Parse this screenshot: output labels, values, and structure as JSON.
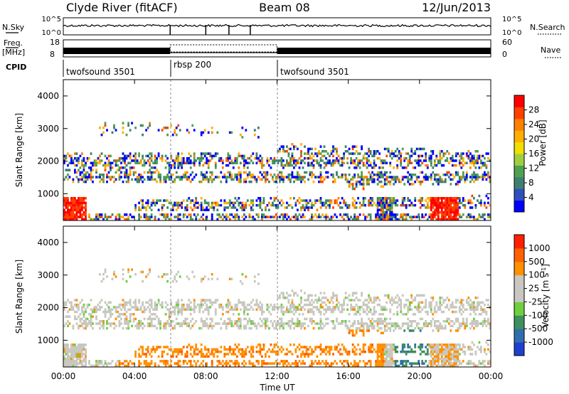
{
  "header": {
    "station": "Clyde River (fitACF)",
    "beam": "Beam 08",
    "date": "12/Jun/2013"
  },
  "status": {
    "nsky_label": "N.Sky",
    "nsky_ticks": [
      "10^5",
      "10^0"
    ],
    "nsearch_label": "N.Search",
    "freq_label": "Freq.",
    "freq_unit": "[MHz]",
    "freq_ticks": [
      "18",
      "8"
    ],
    "nave_ticks": [
      "60",
      "0"
    ],
    "nave_label": "Nave",
    "cpid_label": "CPID",
    "cpid_segments": [
      {
        "name": "twofsound 3501",
        "start_hr": 0,
        "end_hr": 6
      },
      {
        "name": "rbsp 200",
        "start_hr": 6,
        "end_hr": 12
      },
      {
        "name": "twofsound 3501",
        "start_hr": 12,
        "end_hr": 24
      }
    ]
  },
  "axes": {
    "ylabel": "Slant Range [km]",
    "xlabel": "Time UT",
    "yticks": [
      "1000",
      "2000",
      "3000",
      "4000"
    ],
    "xticks": [
      "00:00",
      "04:00",
      "08:00",
      "12:00",
      "16:00",
      "20:00",
      "00:00"
    ]
  },
  "chart_data": [
    {
      "type": "heatmap",
      "panel": "power",
      "x_range_hr": [
        0,
        24
      ],
      "y_range_km": [
        180,
        4500
      ],
      "yticks_km": [
        1000,
        2000,
        3000,
        4000
      ],
      "colorbar": {
        "label": "Power [dB]",
        "ticks": [
          "28",
          "24",
          "20",
          "16",
          "12",
          "8",
          "4"
        ],
        "colors": [
          "#0000ff",
          "#2f4fbf",
          "#3f7f6f",
          "#4fa04f",
          "#9fcf3f",
          "#f0e000",
          "#ffb000",
          "#ff8000",
          "#ff4000",
          "#ff0000"
        ]
      }
    },
    {
      "type": "heatmap",
      "panel": "velocity",
      "x_range_hr": [
        0,
        24
      ],
      "y_range_km": [
        180,
        4500
      ],
      "yticks_km": [
        1000,
        2000,
        3000,
        4000
      ],
      "colorbar": {
        "label": "Velocity [m s",
        "label_sup": "-1",
        "label_end": "]",
        "ticks": [
          "1000",
          "500",
          "100",
          "25",
          "-25",
          "-100",
          "-500",
          "-1000"
        ],
        "colors": [
          "#1f3fcf",
          "#2f6faf",
          "#3f8f5f",
          "#6fcf3f",
          "#c8c8c0",
          "#c8c8c0",
          "#ff9000",
          "#ff6000",
          "#ff2000"
        ]
      }
    }
  ]
}
